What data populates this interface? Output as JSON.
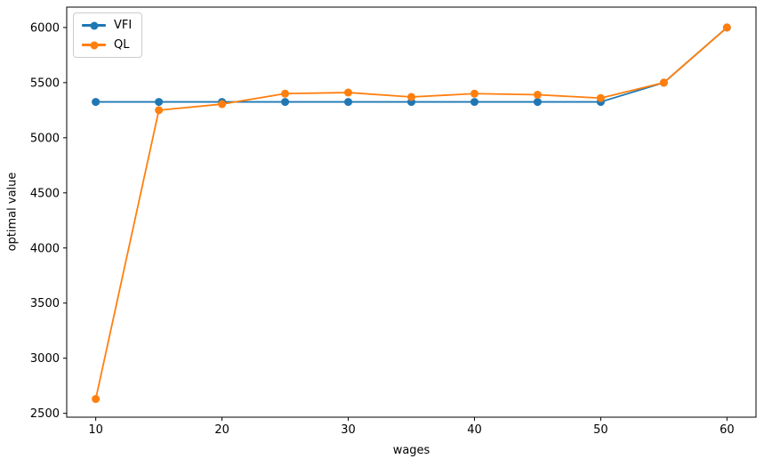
{
  "chart_data": {
    "type": "line",
    "title": "",
    "xlabel": "wages",
    "ylabel": "optimal value",
    "x": [
      10,
      15,
      20,
      25,
      30,
      35,
      40,
      45,
      50,
      55,
      60
    ],
    "series": [
      {
        "name": "VFI",
        "color": "#1f77b4",
        "marker": "circle",
        "values": [
          5325,
          5325,
          5325,
          5325,
          5325,
          5325,
          5325,
          5325,
          5325,
          5500,
          6000
        ]
      },
      {
        "name": "QL",
        "color": "#ff7f0e",
        "marker": "circle",
        "values": [
          2630,
          5250,
          5305,
          5400,
          5410,
          5370,
          5400,
          5390,
          5360,
          5500,
          6000
        ]
      }
    ],
    "xlim": [
      7.7,
      62.3
    ],
    "ylim": [
      2465,
      6185
    ],
    "xticks": [
      10,
      20,
      30,
      40,
      50,
      60
    ],
    "yticks": [
      2500,
      3000,
      3500,
      4000,
      4500,
      5000,
      5500,
      6000
    ],
    "grid": false,
    "legend": {
      "position": "upper left"
    },
    "axis_color": "#000000",
    "background": "#ffffff"
  }
}
